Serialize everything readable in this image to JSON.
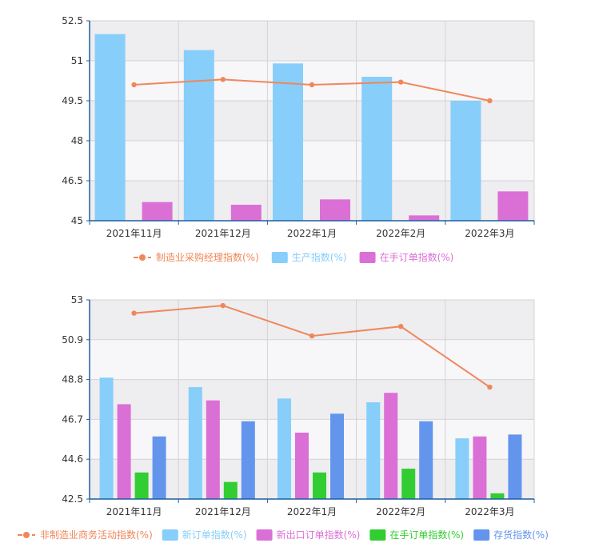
{
  "chart_data": [
    {
      "type": "bar",
      "categories": [
        "2021年11月",
        "2021年12月",
        "2022年1月",
        "2022年2月",
        "2022年3月"
      ],
      "ylim": [
        45,
        52.5
      ],
      "yticks": [
        "52.5",
        "51",
        "49.5",
        "48",
        "46.5",
        "45"
      ],
      "grid": true,
      "legend_position": "bottom",
      "series": [
        {
          "name": "制造业采购经理指数(%)",
          "type": "line",
          "color": "#F0875A",
          "values": [
            50.1,
            50.3,
            50.1,
            50.2,
            49.5
          ]
        },
        {
          "name": "生产指数(%)",
          "type": "bar",
          "color": "#87CEFA",
          "values": [
            52.0,
            51.4,
            50.9,
            50.4,
            49.5
          ]
        },
        {
          "name": "在手订单指数(%)",
          "type": "bar",
          "color": "#DA70D6",
          "values": [
            45.7,
            45.6,
            45.8,
            45.2,
            46.1
          ]
        }
      ]
    },
    {
      "type": "bar",
      "categories": [
        "2021年11月",
        "2021年12月",
        "2022年1月",
        "2022年2月",
        "2022年3月"
      ],
      "ylim": [
        42.5,
        53
      ],
      "yticks": [
        "53",
        "50.9",
        "48.8",
        "46.7",
        "44.6",
        "42.5"
      ],
      "grid": true,
      "legend_position": "bottom",
      "series": [
        {
          "name": "非制造业商务活动指数(%)",
          "type": "line",
          "color": "#F0875A",
          "values": [
            52.3,
            52.7,
            51.1,
            51.6,
            48.4
          ]
        },
        {
          "name": "新订单指数(%)",
          "type": "bar",
          "color": "#87CEFA",
          "values": [
            48.9,
            48.4,
            47.8,
            47.6,
            45.7
          ]
        },
        {
          "name": "新出口订单指数(%)",
          "type": "bar",
          "color": "#DA70D6",
          "values": [
            47.5,
            47.7,
            46.0,
            48.1,
            45.8
          ]
        },
        {
          "name": "在手订单指数(%)",
          "type": "bar",
          "color": "#32CD32",
          "values": [
            43.9,
            43.4,
            43.9,
            44.1,
            42.8
          ]
        },
        {
          "name": "存货指数(%)",
          "type": "bar",
          "color": "#6495ED",
          "values": [
            45.8,
            46.6,
            47.0,
            46.6,
            45.9
          ]
        }
      ]
    }
  ]
}
